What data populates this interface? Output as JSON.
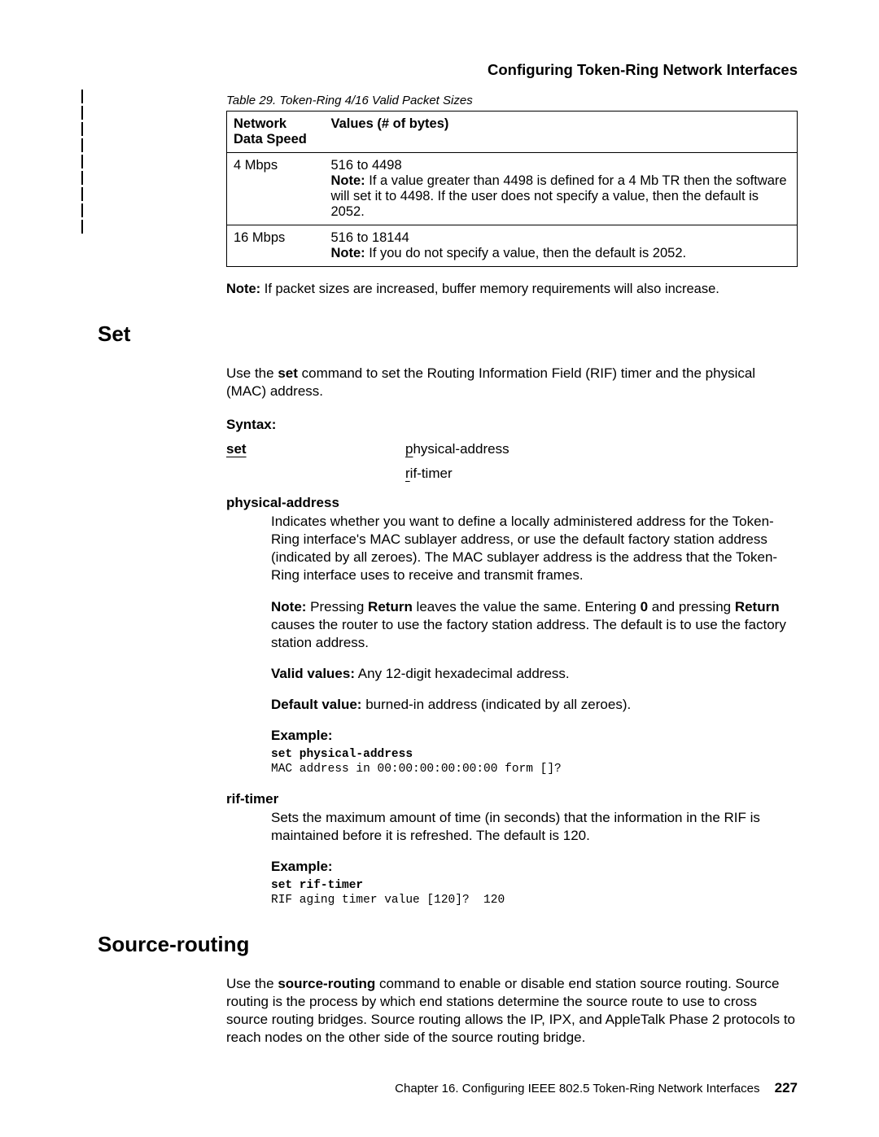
{
  "header": {
    "title": "Configuring Token-Ring Network Interfaces"
  },
  "table": {
    "caption": "Table 29. Token-Ring 4/16 Valid Packet Sizes",
    "col1": "Network Data Speed",
    "col2": "Values (# of bytes)",
    "rows": [
      {
        "speed": "4 Mbps",
        "range": "516 to 4498",
        "note_label": "Note:",
        "note": "  If a value greater than 4498 is defined for a 4 Mb TR then the software will set it to 4498. If the user does not specify a value, then the default is 2052."
      },
      {
        "speed": "16 Mbps",
        "range": "516 to 18144",
        "note_label": "Note:",
        "note": "  If you do not specify a value, then the default is 2052."
      }
    ]
  },
  "note_after_table": {
    "label": "Note:",
    "text": "  If packet sizes are increased, buffer memory requirements will also increase."
  },
  "set": {
    "heading": "Set",
    "intro_pre": "Use the ",
    "intro_cmd": "set",
    "intro_post": " command to set the Routing Information Field (RIF) timer and the physical (MAC) address.",
    "syntax_label": "Syntax:",
    "cmd": "set",
    "opt1_u": "p",
    "opt1_rest": "hysical-address",
    "opt2_u": "r",
    "opt2_rest": "if-timer",
    "physical": {
      "term": "physical-address",
      "desc": "Indicates whether you want to define a locally administered address for the Token-Ring interface's MAC sublayer address, or use the default factory station address (indicated by all zeroes). The MAC sublayer address is the address that the Token-Ring interface uses to receive and transmit frames.",
      "note_label": "Note:",
      "note_pre": "  Pressing ",
      "note_b1": "Return",
      "note_mid": " leaves the value the same. Entering ",
      "note_b2": "0",
      "note_mid2": " and pressing ",
      "note_b3": "Return",
      "note_post": " causes the router to use the factory station address. The default is to use the factory station address.",
      "valid_label": "Valid values:",
      "valid_text": " Any 12-digit hexadecimal address.",
      "default_label": "Default value:",
      "default_text": " burned-in address (indicated by all zeroes).",
      "example_label": "Example:",
      "code_bold": "set physical-address",
      "code_rest": "MAC address in 00:00:00:00:00:00 form []?"
    },
    "rif": {
      "term": "rif-timer",
      "desc": "Sets the maximum amount of time (in seconds) that the information in the RIF is maintained before it is refreshed. The default is 120.",
      "example_label": "Example:",
      "code_bold": "set rif-timer",
      "code_rest": "RIF aging timer value [120]?  120"
    }
  },
  "source_routing": {
    "heading": "Source-routing",
    "intro_pre": "Use the ",
    "intro_cmd": "source-routing",
    "intro_post": " command to enable or disable end station source routing. Source routing is the process by which end stations determine the source route to use to cross source routing bridges. Source routing allows the IP, IPX, and AppleTalk Phase 2 protocols to reach nodes on the other side of the source routing bridge."
  },
  "footer": {
    "chapter": "Chapter 16. Configuring IEEE 802.5 Token-Ring Network Interfaces",
    "page": "227"
  }
}
